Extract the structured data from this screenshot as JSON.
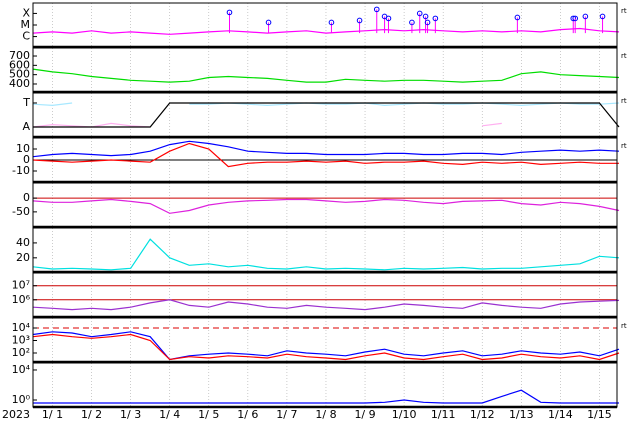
{
  "x_axis": {
    "year": "2023",
    "xlim": [
      0.5,
      15.45
    ],
    "xticks": [
      {
        "value": 1,
        "label": "1/ 1"
      },
      {
        "value": 2,
        "label": "1/ 2"
      },
      {
        "value": 3,
        "label": "1/ 3"
      },
      {
        "value": 4,
        "label": "1/ 4"
      },
      {
        "value": 5,
        "label": "1/ 5"
      },
      {
        "value": 6,
        "label": "1/ 6"
      },
      {
        "value": 7,
        "label": "1/ 7"
      },
      {
        "value": 8,
        "label": "1/ 8"
      },
      {
        "value": 9,
        "label": "1/ 9"
      },
      {
        "value": 10,
        "label": "1/10"
      },
      {
        "value": 11,
        "label": "1/11"
      },
      {
        "value": 12,
        "label": "1/12"
      },
      {
        "value": 13,
        "label": "1/13"
      },
      {
        "value": 14,
        "label": "1/14"
      },
      {
        "value": 15,
        "label": "1/15"
      }
    ],
    "x": [
      0.5,
      1,
      1.5,
      2,
      2.5,
      3,
      3.5,
      4,
      4.5,
      5,
      5.5,
      6,
      6.5,
      7,
      7.5,
      8,
      8.5,
      9,
      9.5,
      10,
      10.5,
      11,
      11.5,
      12,
      12.5,
      13,
      13.5,
      14,
      14.5,
      15,
      15.5
    ]
  },
  "chart_data": [
    {
      "type": "line",
      "log": false,
      "ylim": [
        0.1,
        3.9
      ],
      "side_label": "rt",
      "yticks": [
        {
          "value": 3,
          "label": "X"
        },
        {
          "value": 2,
          "label": "M"
        },
        {
          "value": 1,
          "label": "C"
        }
      ],
      "series": [
        {
          "color": "#ff00ff",
          "values": [
            1.3,
            1.4,
            1.3,
            1.5,
            1.3,
            1.4,
            1.3,
            1.2,
            1.3,
            1.4,
            1.5,
            1.4,
            1.3,
            1.4,
            1.5,
            1.3,
            1.4,
            1.5,
            1.6,
            1.5,
            1.6,
            1.5,
            1.4,
            1.5,
            1.4,
            1.5,
            1.4,
            1.6,
            1.7,
            1.5,
            1.4
          ]
        }
      ],
      "events": {
        "color": "#0000ff",
        "x": [
          5.53,
          6.53,
          8.14,
          8.86,
          9.3,
          9.5,
          9.6,
          10.2,
          10.4,
          10.55,
          10.6,
          10.8,
          12.9,
          14.33,
          14.38,
          14.64,
          15.08
        ],
        "values": [
          3.09,
          2.22,
          2.22,
          2.39,
          3.35,
          2.74,
          2.57,
          2.22,
          3.0,
          2.74,
          2.22,
          2.57,
          2.65,
          2.57,
          2.57,
          2.74,
          2.74
        ]
      }
    },
    {
      "type": "line",
      "log": false,
      "ylim": [
        314,
        786
      ],
      "side_label": "rt",
      "yticks": [
        400,
        500,
        600,
        700
      ],
      "series": [
        {
          "color": "#00dd00",
          "values": [
            560,
            530,
            510,
            480,
            460,
            440,
            430,
            420,
            430,
            470,
            480,
            470,
            460,
            440,
            420,
            420,
            450,
            440,
            430,
            440,
            440,
            430,
            420,
            430,
            440,
            510,
            530,
            500,
            490,
            480,
            470
          ]
        }
      ]
    },
    {
      "type": "line",
      "log": false,
      "ylim": [
        -1.83,
        1.83
      ],
      "side_label": "rt",
      "yticks": [
        {
          "value": 1,
          "label": "T"
        },
        {
          "value": -1,
          "label": "A"
        }
      ],
      "series": [
        {
          "color": "#a8e8ff",
          "values": [
            0.9,
            0.8,
            1.0,
            null,
            0.7,
            null,
            null,
            null,
            0.9,
            0.9,
            1.0,
            0.9,
            0.8,
            0.9,
            1.0,
            0.9,
            0.9,
            1.0,
            0.8,
            0.9,
            1.0,
            0.9,
            0.9,
            1.0,
            0.9,
            0.8,
            0.9,
            1.0,
            0.9,
            0.9,
            1.0
          ]
        },
        {
          "color": "#ffb0f0",
          "values": [
            -1.0,
            -0.8,
            -0.9,
            -1.0,
            -0.7,
            -0.9,
            -1.0,
            null,
            null,
            null,
            null,
            null,
            null,
            null,
            null,
            null,
            null,
            null,
            null,
            null,
            null,
            null,
            null,
            -0.9,
            -0.7,
            null,
            null,
            null,
            null,
            null,
            null
          ]
        },
        {
          "color": "#000000",
          "values": [
            -1,
            -1,
            -1,
            -1,
            -1,
            -1,
            -1,
            1,
            1,
            1,
            1,
            1,
            1,
            1,
            1,
            1,
            1,
            1,
            1,
            1,
            1,
            1,
            1,
            1,
            1,
            1,
            1,
            1,
            1,
            1,
            -1
          ]
        }
      ]
    },
    {
      "type": "line",
      "log": false,
      "ylim": [
        -20,
        20
      ],
      "side_label": "rt",
      "yticks": [
        10,
        0,
        -10
      ],
      "hlines": [
        {
          "value": 0,
          "color": "#000000",
          "dash": false
        }
      ],
      "series": [
        {
          "color": "#0000ff",
          "values": [
            3,
            5,
            6,
            5,
            4,
            5,
            8,
            14,
            17,
            15,
            12,
            8,
            7,
            6,
            6,
            5,
            5,
            5,
            6,
            6,
            5,
            5,
            6,
            6,
            5,
            7,
            8,
            9,
            8,
            9,
            8
          ]
        },
        {
          "color": "#ff0000",
          "values": [
            0,
            -1,
            -2,
            -1,
            0,
            -1,
            -2,
            8,
            15,
            10,
            -6,
            -3,
            -2,
            -2,
            -1,
            -2,
            -1,
            -3,
            -2,
            -2,
            -1,
            -3,
            -4,
            -2,
            -3,
            -2,
            -4,
            -3,
            -2,
            -3,
            -3
          ]
        }
      ]
    },
    {
      "type": "line",
      "log": false,
      "ylim": [
        -105,
        55
      ],
      "yticks": [
        0,
        -50
      ],
      "hlines": [
        {
          "value": 0,
          "color": "#cc0000",
          "dash": false
        }
      ],
      "series": [
        {
          "color": "#dd22dd",
          "values": [
            -10,
            -15,
            -15,
            -10,
            -5,
            -12,
            -20,
            -55,
            -45,
            -25,
            -15,
            -10,
            -8,
            -5,
            -5,
            -10,
            -15,
            -12,
            -5,
            -8,
            -15,
            -20,
            -12,
            -10,
            -8,
            -20,
            -25,
            -15,
            -20,
            -30,
            -45
          ]
        }
      ]
    },
    {
      "type": "line",
      "log": false,
      "ylim": [
        1,
        60
      ],
      "yticks": [
        40,
        20
      ],
      "series": [
        {
          "color": "#00e0e0",
          "values": [
            8,
            5,
            6,
            5,
            4,
            6,
            45,
            20,
            10,
            12,
            8,
            10,
            6,
            5,
            8,
            5,
            6,
            5,
            4,
            6,
            5,
            6,
            7,
            5,
            6,
            6,
            8,
            10,
            12,
            22,
            20
          ]
        }
      ]
    },
    {
      "type": "line",
      "log": true,
      "ylim": [
        60000,
        80000000
      ],
      "yticks": [
        {
          "value": 10000000,
          "label": "10⁷"
        },
        {
          "value": 1000000,
          "label": "10⁶"
        }
      ],
      "hlines": [
        {
          "value": 10000000,
          "color": "#cc0000",
          "dash": false
        },
        {
          "value": 1000000,
          "color": "#cc0000",
          "dash": false
        }
      ],
      "series": [
        {
          "color": "#9a30d0",
          "values": [
            300000,
            250000,
            200000,
            250000,
            200000,
            300000,
            600000,
            1000000,
            400000,
            300000,
            700000,
            500000,
            300000,
            250000,
            400000,
            300000,
            250000,
            200000,
            300000,
            500000,
            400000,
            300000,
            250000,
            600000,
            400000,
            300000,
            250000,
            500000,
            700000,
            800000,
            900000
          ]
        }
      ]
    },
    {
      "type": "line",
      "log": true,
      "ylim": [
        19,
        63000
      ],
      "side_label": "rt",
      "yticks": [
        {
          "value": 10000,
          "label": "10⁴"
        },
        {
          "value": 1000,
          "label": "10³"
        },
        {
          "value": 100,
          "label": "10²"
        }
      ],
      "hlines": [
        {
          "value": 10000,
          "color": "#dd0000",
          "dash": true
        }
      ],
      "series": [
        {
          "color": "#0000ff",
          "values": [
            3000,
            5000,
            4000,
            2000,
            3000,
            5000,
            2000,
            30,
            60,
            80,
            100,
            80,
            60,
            150,
            100,
            80,
            60,
            120,
            200,
            80,
            60,
            100,
            150,
            60,
            80,
            150,
            100,
            80,
            120,
            60,
            200
          ]
        },
        {
          "color": "#ff0000",
          "values": [
            2000,
            3000,
            2000,
            1500,
            2000,
            3000,
            1000,
            30,
            50,
            40,
            60,
            50,
            40,
            80,
            50,
            40,
            30,
            60,
            100,
            40,
            30,
            50,
            80,
            30,
            40,
            80,
            50,
            40,
            60,
            30,
            100
          ]
        }
      ]
    },
    {
      "type": "line",
      "log": true,
      "ylim": [
        0.117,
        85000
      ],
      "yticks": [
        {
          "value": 10000,
          "label": "10⁴"
        },
        {
          "value": 1,
          "label": "10⁰"
        }
      ],
      "series": [
        {
          "color": "#0000ff",
          "values": [
            0.4,
            0.4,
            0.4,
            0.4,
            0.4,
            0.4,
            0.4,
            0.4,
            0.4,
            0.4,
            0.4,
            0.4,
            0.4,
            0.4,
            0.4,
            0.4,
            0.4,
            0.4,
            0.5,
            1,
            0.5,
            0.4,
            0.4,
            0.4,
            3,
            20,
            0.5,
            0.4,
            0.4,
            0.4,
            0.4
          ]
        }
      ]
    }
  ]
}
